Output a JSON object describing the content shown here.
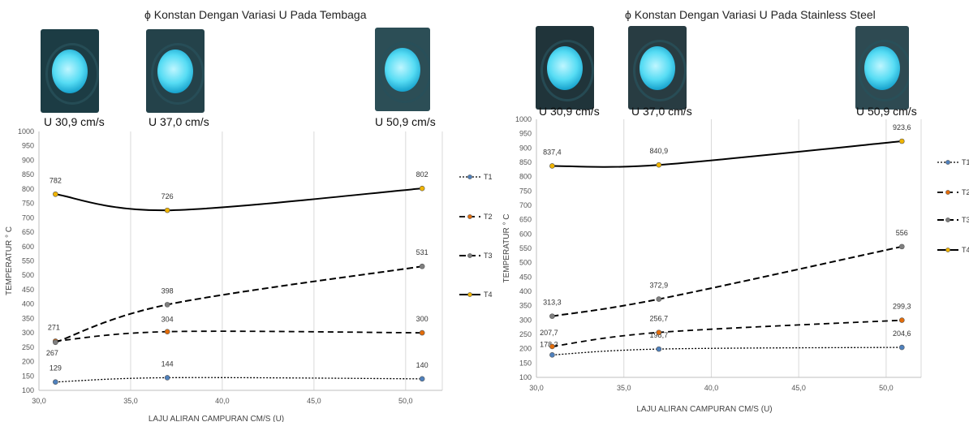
{
  "chart_data": [
    {
      "type": "line",
      "title": "ϕ Konstan Dengan Variasi U Pada Tembaga",
      "photo_labels": [
        "U 30,9 cm/s",
        "U 37,0 cm/s",
        "U 50,9 cm/s"
      ],
      "xlabel": "LAJU ALIRAN CAMPURAN CM/S (U)",
      "ylabel": "TEMPERATUR ° C",
      "xlim": [
        30,
        52
      ],
      "ylim": [
        100,
        1000
      ],
      "xticks": [
        "30,0",
        "35,0",
        "40,0",
        "45,0",
        "50,0"
      ],
      "yticks": [
        "100",
        "150",
        "200",
        "250",
        "300",
        "350",
        "400",
        "450",
        "500",
        "550",
        "600",
        "650",
        "700",
        "750",
        "800",
        "850",
        "900",
        "950",
        "1000"
      ],
      "x": [
        30.9,
        37.0,
        50.9
      ],
      "grid": "vertical",
      "legend": "right",
      "series": [
        {
          "name": "T1",
          "values": [
            129,
            144,
            140
          ],
          "labels": [
            "129",
            "144",
            "140"
          ],
          "color": "#4f81bd"
        },
        {
          "name": "T2",
          "values": [
            271,
            304,
            300
          ],
          "labels": [
            "271",
            "304",
            "300"
          ],
          "color": "#e36c0a"
        },
        {
          "name": "T3",
          "values": [
            267,
            398,
            531
          ],
          "labels": [
            "267",
            "398",
            "531"
          ],
          "color": "#7f7f7f"
        },
        {
          "name": "T4",
          "values": [
            782,
            726,
            802
          ],
          "labels": [
            "782",
            "726",
            "802"
          ],
          "color": "#f0b400"
        }
      ]
    },
    {
      "type": "line",
      "title": "ϕ Konstan Dengan Variasi U Pada Stainless Steel",
      "photo_labels": [
        "U 30,9 cm/s",
        "U 37,0 cm/s",
        "U 50,9 cm/s"
      ],
      "xlabel": "LAJU ALIRAN CAMPURAN CM/S (U)",
      "ylabel": "TEMPERATUR ° C",
      "xlim": [
        30,
        52
      ],
      "ylim": [
        100,
        1000
      ],
      "xticks": [
        "30,0",
        "35,0",
        "40,0",
        "45,0",
        "50,0"
      ],
      "yticks": [
        "100",
        "150",
        "200",
        "250",
        "300",
        "350",
        "400",
        "450",
        "500",
        "550",
        "600",
        "650",
        "700",
        "750",
        "800",
        "850",
        "900",
        "950",
        "1000"
      ],
      "x": [
        30.9,
        37.0,
        50.9
      ],
      "grid": "vertical",
      "legend": "right",
      "series": [
        {
          "name": "T1",
          "values": [
            178.3,
            198.7,
            204.6
          ],
          "labels": [
            "178,3",
            "198,7",
            "204,6"
          ],
          "color": "#4f81bd"
        },
        {
          "name": "T2",
          "values": [
            207.7,
            256.7,
            299.3
          ],
          "labels": [
            "207,7",
            "256,7",
            "299,3"
          ],
          "color": "#e36c0a"
        },
        {
          "name": "T3",
          "values": [
            313.3,
            372.9,
            556
          ],
          "labels": [
            "313,3",
            "372,9",
            "556"
          ],
          "color": "#7f7f7f"
        },
        {
          "name": "T4",
          "values": [
            837.4,
            840.9,
            923.6
          ],
          "labels": [
            "837,4",
            "840,9",
            "923,6"
          ],
          "color": "#f0b400"
        }
      ]
    }
  ]
}
